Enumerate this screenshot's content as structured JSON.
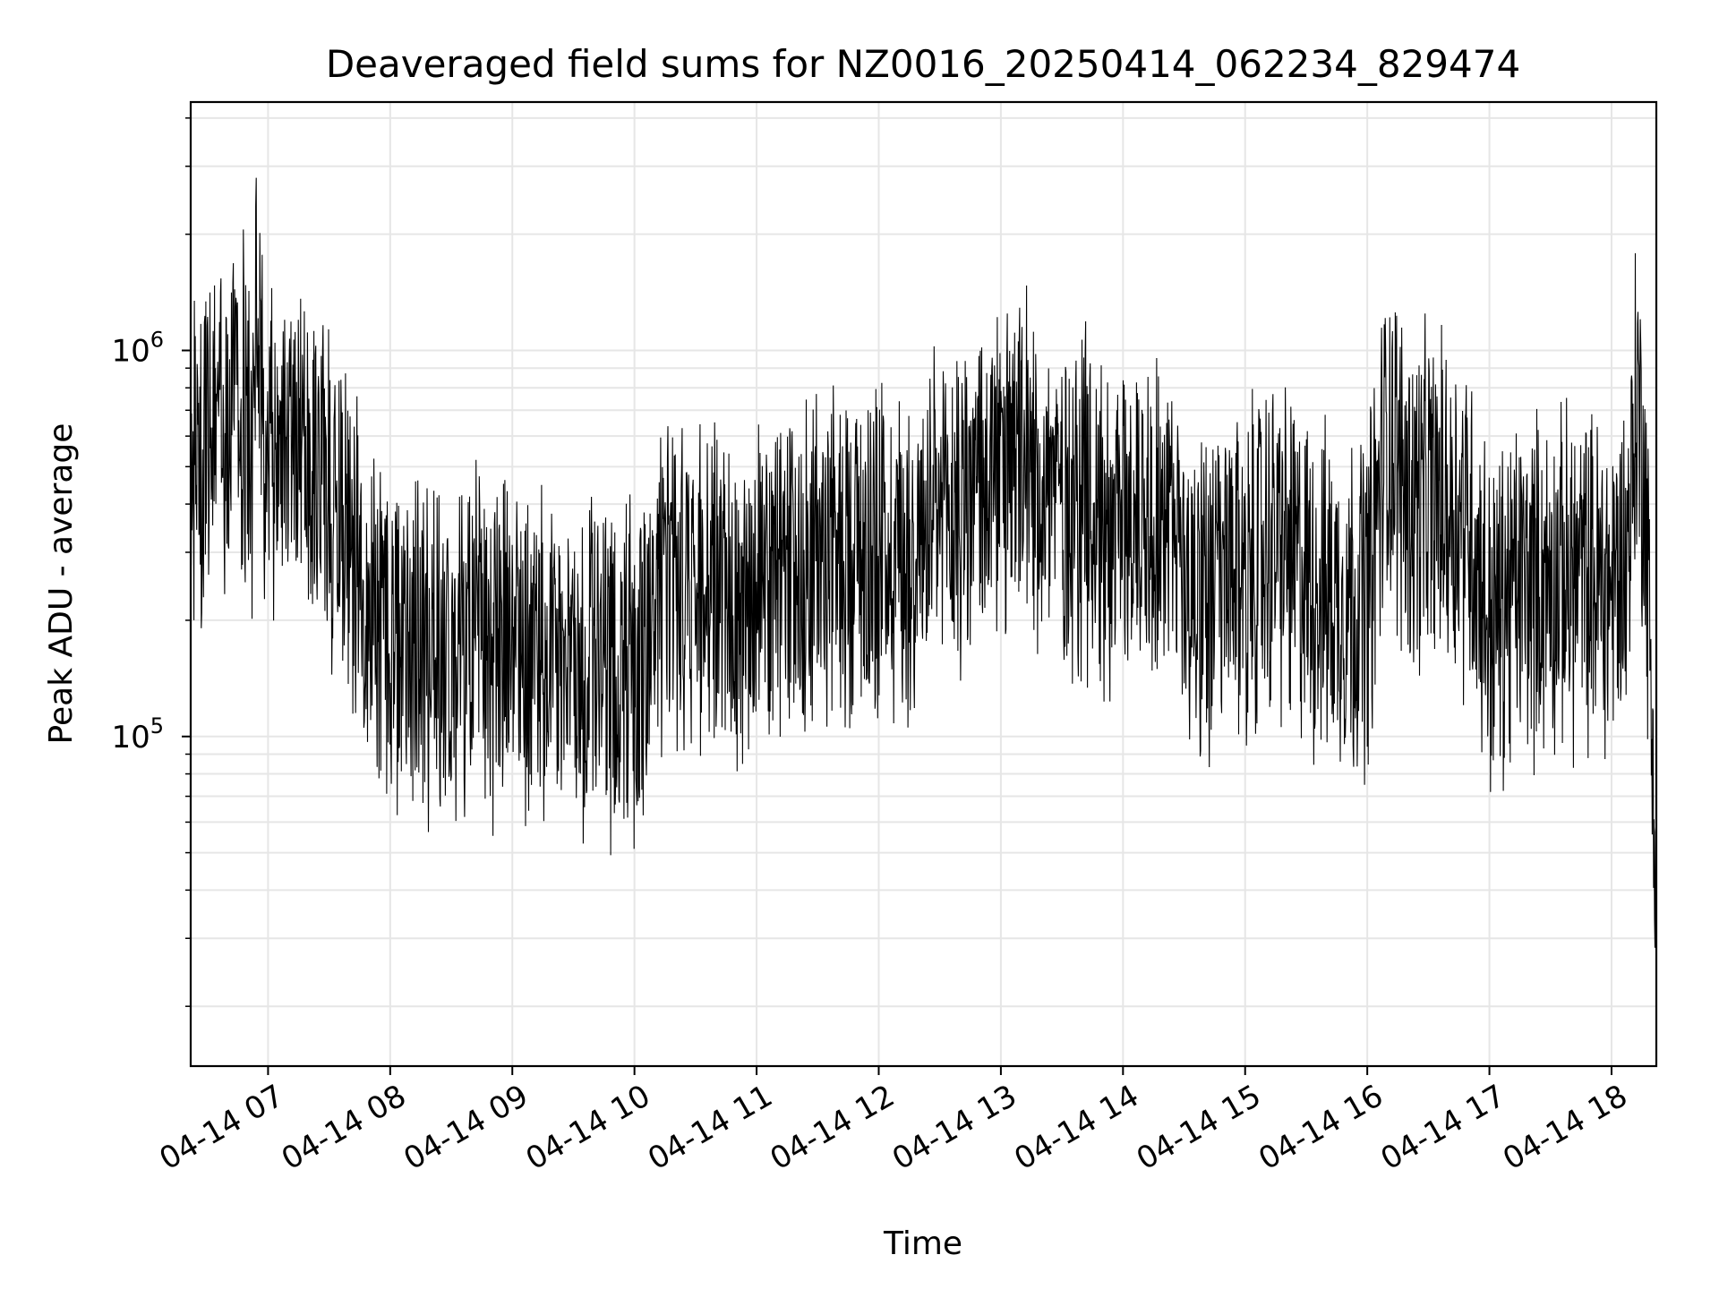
{
  "chart_data": {
    "type": "line",
    "title": "Deaveraged field sums for NZ0016_20250414_062234_829474",
    "xlabel": "Time",
    "ylabel": "Peak ADU - average",
    "y_scale": "log",
    "ylim": [
      14000,
      4400000
    ],
    "xlim": [
      "2025-04-14 06:22",
      "2025-04-14 18:22"
    ],
    "x_tick_labels": [
      "04-14 07",
      "04-14 08",
      "04-14 09",
      "04-14 10",
      "04-14 11",
      "04-14 12",
      "04-14 13",
      "04-14 14",
      "04-14 15",
      "04-14 16",
      "04-14 17",
      "04-14 18"
    ],
    "y_tick_labels": [
      {
        "base": "10",
        "exp": "5"
      },
      {
        "base": "10",
        "exp": "6"
      }
    ],
    "grid": true,
    "line_color": "#000000",
    "series": [
      {
        "x": [
          "2025-04-14 06:22",
          "2025-04-14 06:30",
          "2025-04-14 06:37",
          "2025-04-14 06:45",
          "2025-04-14 06:52",
          "2025-04-14 06:55",
          "2025-04-14 06:58",
          "2025-04-14 07:10",
          "2025-04-14 07:25",
          "2025-04-14 07:35",
          "2025-04-14 07:45",
          "2025-04-14 08:00",
          "2025-04-14 08:15",
          "2025-04-14 08:30",
          "2025-04-14 08:45",
          "2025-04-14 09:00",
          "2025-04-14 09:15",
          "2025-04-14 09:30",
          "2025-04-14 09:45",
          "2025-04-14 10:00",
          "2025-04-14 10:15",
          "2025-04-14 10:30",
          "2025-04-14 10:45",
          "2025-04-14 11:00",
          "2025-04-14 11:15",
          "2025-04-14 11:30",
          "2025-04-14 11:45",
          "2025-04-14 12:00",
          "2025-04-14 12:15",
          "2025-04-14 12:30",
          "2025-04-14 12:45",
          "2025-04-14 13:00",
          "2025-04-14 13:15",
          "2025-04-14 13:30",
          "2025-04-14 13:45",
          "2025-04-14 13:52",
          "2025-04-14 14:00",
          "2025-04-14 14:15",
          "2025-04-14 14:30",
          "2025-04-14 14:45",
          "2025-04-14 15:00",
          "2025-04-14 15:15",
          "2025-04-14 15:30",
          "2025-04-14 15:45",
          "2025-04-14 16:00",
          "2025-04-14 16:10",
          "2025-04-14 16:20",
          "2025-04-14 16:35",
          "2025-04-14 16:50",
          "2025-04-14 17:00",
          "2025-04-14 17:15",
          "2025-04-14 17:30",
          "2025-04-14 17:45",
          "2025-04-14 18:00",
          "2025-04-14 18:08",
          "2025-04-14 18:12",
          "2025-04-14 18:16",
          "2025-04-14 18:20",
          "2025-04-14 18:22"
        ],
        "y": [
          520000,
          640000,
          720000,
          950000,
          560000,
          1400000,
          620000,
          700000,
          560000,
          420000,
          250000,
          190000,
          200000,
          160000,
          180000,
          170000,
          160000,
          170000,
          150000,
          160000,
          240000,
          250000,
          230000,
          270000,
          260000,
          300000,
          320000,
          330000,
          310000,
          350000,
          440000,
          480000,
          500000,
          440000,
          430000,
          360000,
          380000,
          420000,
          270000,
          240000,
          280000,
          330000,
          260000,
          230000,
          240000,
          650000,
          430000,
          420000,
          380000,
          200000,
          260000,
          260000,
          270000,
          250000,
          320000,
          780000,
          520000,
          110000,
          40000
        ],
        "noise_range": [
          0.18,
          4.5
        ]
      }
    ]
  }
}
